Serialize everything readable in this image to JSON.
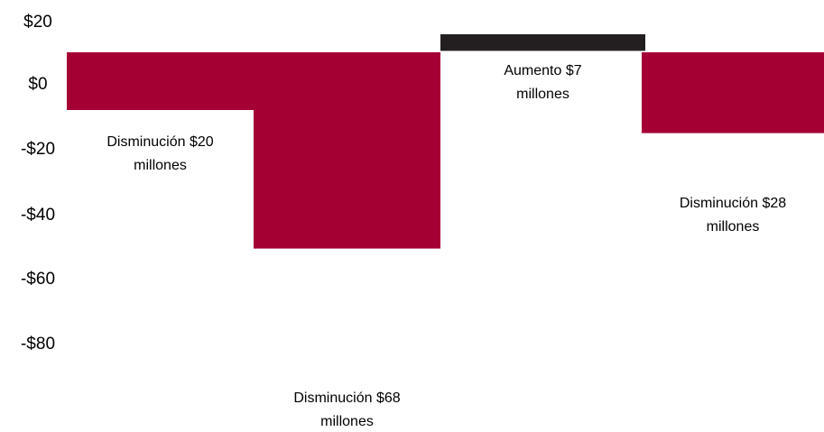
{
  "chart_data": {
    "type": "bar",
    "title": "",
    "xlabel": "",
    "ylabel": "",
    "categories": [
      "",
      "",
      "",
      ""
    ],
    "series": [
      {
        "values": [
          -20,
          -68,
          7,
          -28
        ]
      }
    ],
    "bar_labels": [
      [
        "Disminución $20",
        "millones"
      ],
      [
        "Disminución $68",
        "millones"
      ],
      [
        "Aumento $7",
        "millones"
      ],
      [
        "Disminución $28",
        "millones"
      ]
    ],
    "bar_colors": [
      "#a50034",
      "#a50034",
      "#231f20",
      "#a50034"
    ],
    "ylim": [
      -80,
      20
    ],
    "yticks": [
      20,
      0,
      -20,
      -40,
      -60,
      -80
    ],
    "ytick_labels": [
      "$20",
      "$0",
      "-$20",
      "-$40",
      "-$60",
      "-$80"
    ],
    "grid": false,
    "legend": "none"
  }
}
